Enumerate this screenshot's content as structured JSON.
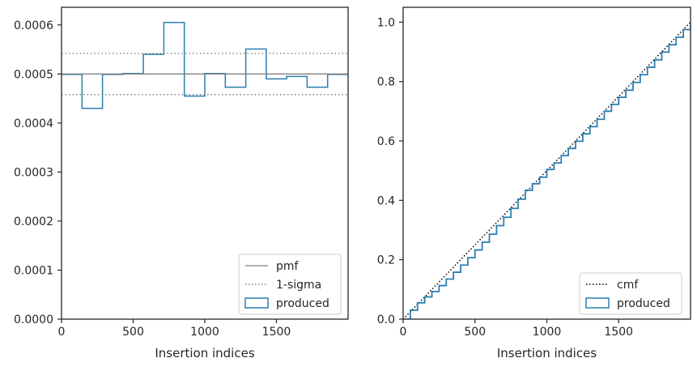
{
  "chart_data": [
    {
      "type": "step-histogram",
      "title": "",
      "xlabel": "Insertion indices",
      "ylabel": "",
      "xlim": [
        0,
        2000
      ],
      "ylim": [
        0,
        0.000636
      ],
      "xticks": [
        0,
        500,
        1000,
        1500
      ],
      "xtick_labels": [
        "0",
        "500",
        "1000",
        "1500"
      ],
      "yticks": [
        0,
        0.0001,
        0.0002,
        0.0003,
        0.0004,
        0.0005,
        0.0006
      ],
      "ytick_labels": [
        "0.0000",
        "0.0001",
        "0.0002",
        "0.0003",
        "0.0004",
        "0.0005",
        "0.0006"
      ],
      "bin_edges": [
        0,
        143,
        286,
        429,
        571,
        714,
        857,
        1000,
        1143,
        1286,
        1429,
        1571,
        1714,
        1857,
        2000
      ],
      "series": [
        {
          "name": "produced",
          "kind": "step",
          "color": "#2a7fb0",
          "values": [
            0.000499,
            0.00043,
            0.000499,
            0.000501,
            0.00054,
            0.000605,
            0.000455,
            0.000501,
            0.000473,
            0.000551,
            0.00049,
            0.000495,
            0.000473,
            0.000499
          ]
        },
        {
          "name": "pmf",
          "kind": "hline",
          "color": "#808080",
          "value": 0.0005
        },
        {
          "name": "1-sigma",
          "kind": "hline-dotted",
          "color": "#808080",
          "values": [
            0.000458,
            0.000542
          ]
        }
      ],
      "legend": {
        "position": "lower-right",
        "entries": [
          "pmf",
          "1-sigma",
          "produced"
        ]
      }
    },
    {
      "type": "line",
      "title": "",
      "xlabel": "Insertion indices",
      "ylabel": "",
      "xlim": [
        0,
        2000
      ],
      "ylim": [
        0,
        1.05
      ],
      "xticks": [
        0,
        500,
        1000,
        1500
      ],
      "xtick_labels": [
        "0",
        "500",
        "1000",
        "1500"
      ],
      "yticks": [
        0,
        0.2,
        0.4,
        0.6,
        0.8,
        1.0
      ],
      "ytick_labels": [
        "0.0",
        "0.2",
        "0.4",
        "0.6",
        "0.8",
        "1.0"
      ],
      "series": [
        {
          "name": "cmf",
          "kind": "dotted-line",
          "color": "#000000",
          "x": [
            0,
            2000
          ],
          "y": [
            0,
            1.0
          ]
        },
        {
          "name": "produced",
          "kind": "step",
          "color": "#2a7fb0",
          "x": [
            0,
            50,
            100,
            150,
            200,
            250,
            300,
            350,
            400,
            450,
            500,
            550,
            600,
            650,
            700,
            750,
            800,
            850,
            900,
            950,
            1000,
            1050,
            1100,
            1150,
            1200,
            1250,
            1300,
            1350,
            1400,
            1450,
            1500,
            1550,
            1600,
            1650,
            1700,
            1750,
            1800,
            1850,
            1900,
            1950,
            2000
          ],
          "y": [
            0,
            0.03,
            0.055,
            0.075,
            0.093,
            0.113,
            0.135,
            0.158,
            0.182,
            0.207,
            0.233,
            0.259,
            0.286,
            0.315,
            0.343,
            0.373,
            0.404,
            0.434,
            0.456,
            0.478,
            0.504,
            0.526,
            0.551,
            0.575,
            0.599,
            0.624,
            0.648,
            0.673,
            0.7,
            0.723,
            0.747,
            0.771,
            0.797,
            0.823,
            0.848,
            0.873,
            0.899,
            0.924,
            0.949,
            0.975,
            1.0
          ]
        }
      ],
      "legend": {
        "position": "lower-right",
        "entries": [
          "cmf",
          "produced"
        ]
      }
    }
  ]
}
